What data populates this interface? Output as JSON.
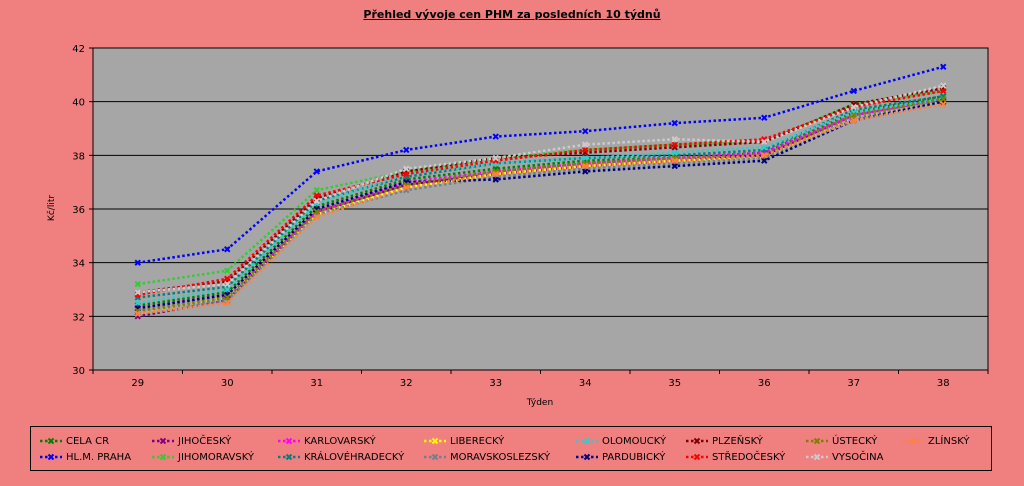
{
  "chart_data": {
    "type": "line",
    "title": "Přehled vývoje cen PHM za posledních 10 týdnů",
    "xlabel": "Týden",
    "ylabel": "Kč/litr",
    "ylim": [
      30,
      42
    ],
    "yticks": [
      30,
      32,
      34,
      36,
      38,
      40,
      42
    ],
    "categories": [
      "29",
      "30",
      "31",
      "32",
      "33",
      "34",
      "35",
      "36",
      "37",
      "38"
    ],
    "grid": true,
    "legend_position": "bottom",
    "series": [
      {
        "name": "CELA CR",
        "color": "#008000",
        "values": [
          32.4,
          32.9,
          36.1,
          37.1,
          37.5,
          37.8,
          37.9,
          38.1,
          39.6,
          40.2
        ]
      },
      {
        "name": "HL.M. PRAHA",
        "color": "#0000ff",
        "values": [
          34.0,
          34.5,
          37.4,
          38.2,
          38.7,
          38.9,
          39.2,
          39.4,
          40.4,
          41.3
        ]
      },
      {
        "name": "JIHOČESKÝ",
        "color": "#800080",
        "values": [
          32.0,
          32.6,
          35.9,
          36.9,
          37.3,
          37.6,
          37.8,
          38.0,
          39.5,
          40.1
        ]
      },
      {
        "name": "JIHOMORAVSKÝ",
        "color": "#33cc33",
        "values": [
          33.2,
          33.7,
          36.7,
          37.4,
          37.9,
          38.2,
          38.4,
          38.5,
          39.9,
          40.4
        ]
      },
      {
        "name": "KARLOVARSKÝ",
        "color": "#ff00ff",
        "values": [
          32.3,
          32.8,
          35.9,
          37.0,
          37.4,
          37.7,
          37.9,
          38.1,
          39.5,
          40.1
        ]
      },
      {
        "name": "KRÁLOVÉHRADECKÝ",
        "color": "#008080",
        "values": [
          32.7,
          33.1,
          36.3,
          37.2,
          37.7,
          37.9,
          38.0,
          38.2,
          39.7,
          40.2
        ]
      },
      {
        "name": "LIBERECKÝ",
        "color": "#ffff00",
        "values": [
          32.1,
          32.7,
          35.8,
          36.8,
          37.3,
          37.6,
          37.8,
          37.9,
          39.4,
          40.0
        ]
      },
      {
        "name": "MORAVSKOSLEZSKÝ",
        "color": "#708090",
        "values": [
          32.2,
          32.6,
          35.8,
          36.7,
          37.2,
          37.5,
          37.7,
          37.9,
          39.4,
          40.0
        ]
      },
      {
        "name": "OLOMOUCKÝ",
        "color": "#33cccc",
        "values": [
          32.5,
          33.0,
          36.2,
          37.3,
          37.7,
          37.9,
          38.1,
          38.3,
          39.6,
          40.1
        ]
      },
      {
        "name": "PARDUBICKÝ",
        "color": "#000080",
        "values": [
          32.3,
          32.8,
          36.0,
          37.0,
          37.1,
          37.4,
          37.6,
          37.8,
          39.3,
          40.0
        ]
      },
      {
        "name": "PLZEŇSKÝ",
        "color": "#800000",
        "values": [
          32.9,
          33.3,
          36.4,
          37.4,
          37.9,
          38.1,
          38.3,
          38.5,
          39.9,
          40.5
        ]
      },
      {
        "name": "STŘEDOČESKÝ",
        "color": "#ff0000",
        "values": [
          32.8,
          33.4,
          36.5,
          37.3,
          37.8,
          38.2,
          38.4,
          38.6,
          39.8,
          40.4
        ]
      },
      {
        "name": "ÚSTECKÝ",
        "color": "#808000",
        "values": [
          32.2,
          32.7,
          35.9,
          36.9,
          37.4,
          37.7,
          37.9,
          38.0,
          39.5,
          40.1
        ]
      },
      {
        "name": "VYSOČINA",
        "color": "#cccccc",
        "values": [
          32.9,
          33.2,
          36.3,
          37.5,
          37.9,
          38.4,
          38.6,
          38.5,
          39.8,
          40.6
        ]
      },
      {
        "name": "ZLÍNSKÝ",
        "color": "#ff8040",
        "values": [
          32.1,
          32.5,
          35.7,
          36.8,
          37.3,
          37.6,
          37.8,
          38.0,
          39.3,
          39.9
        ]
      }
    ]
  }
}
